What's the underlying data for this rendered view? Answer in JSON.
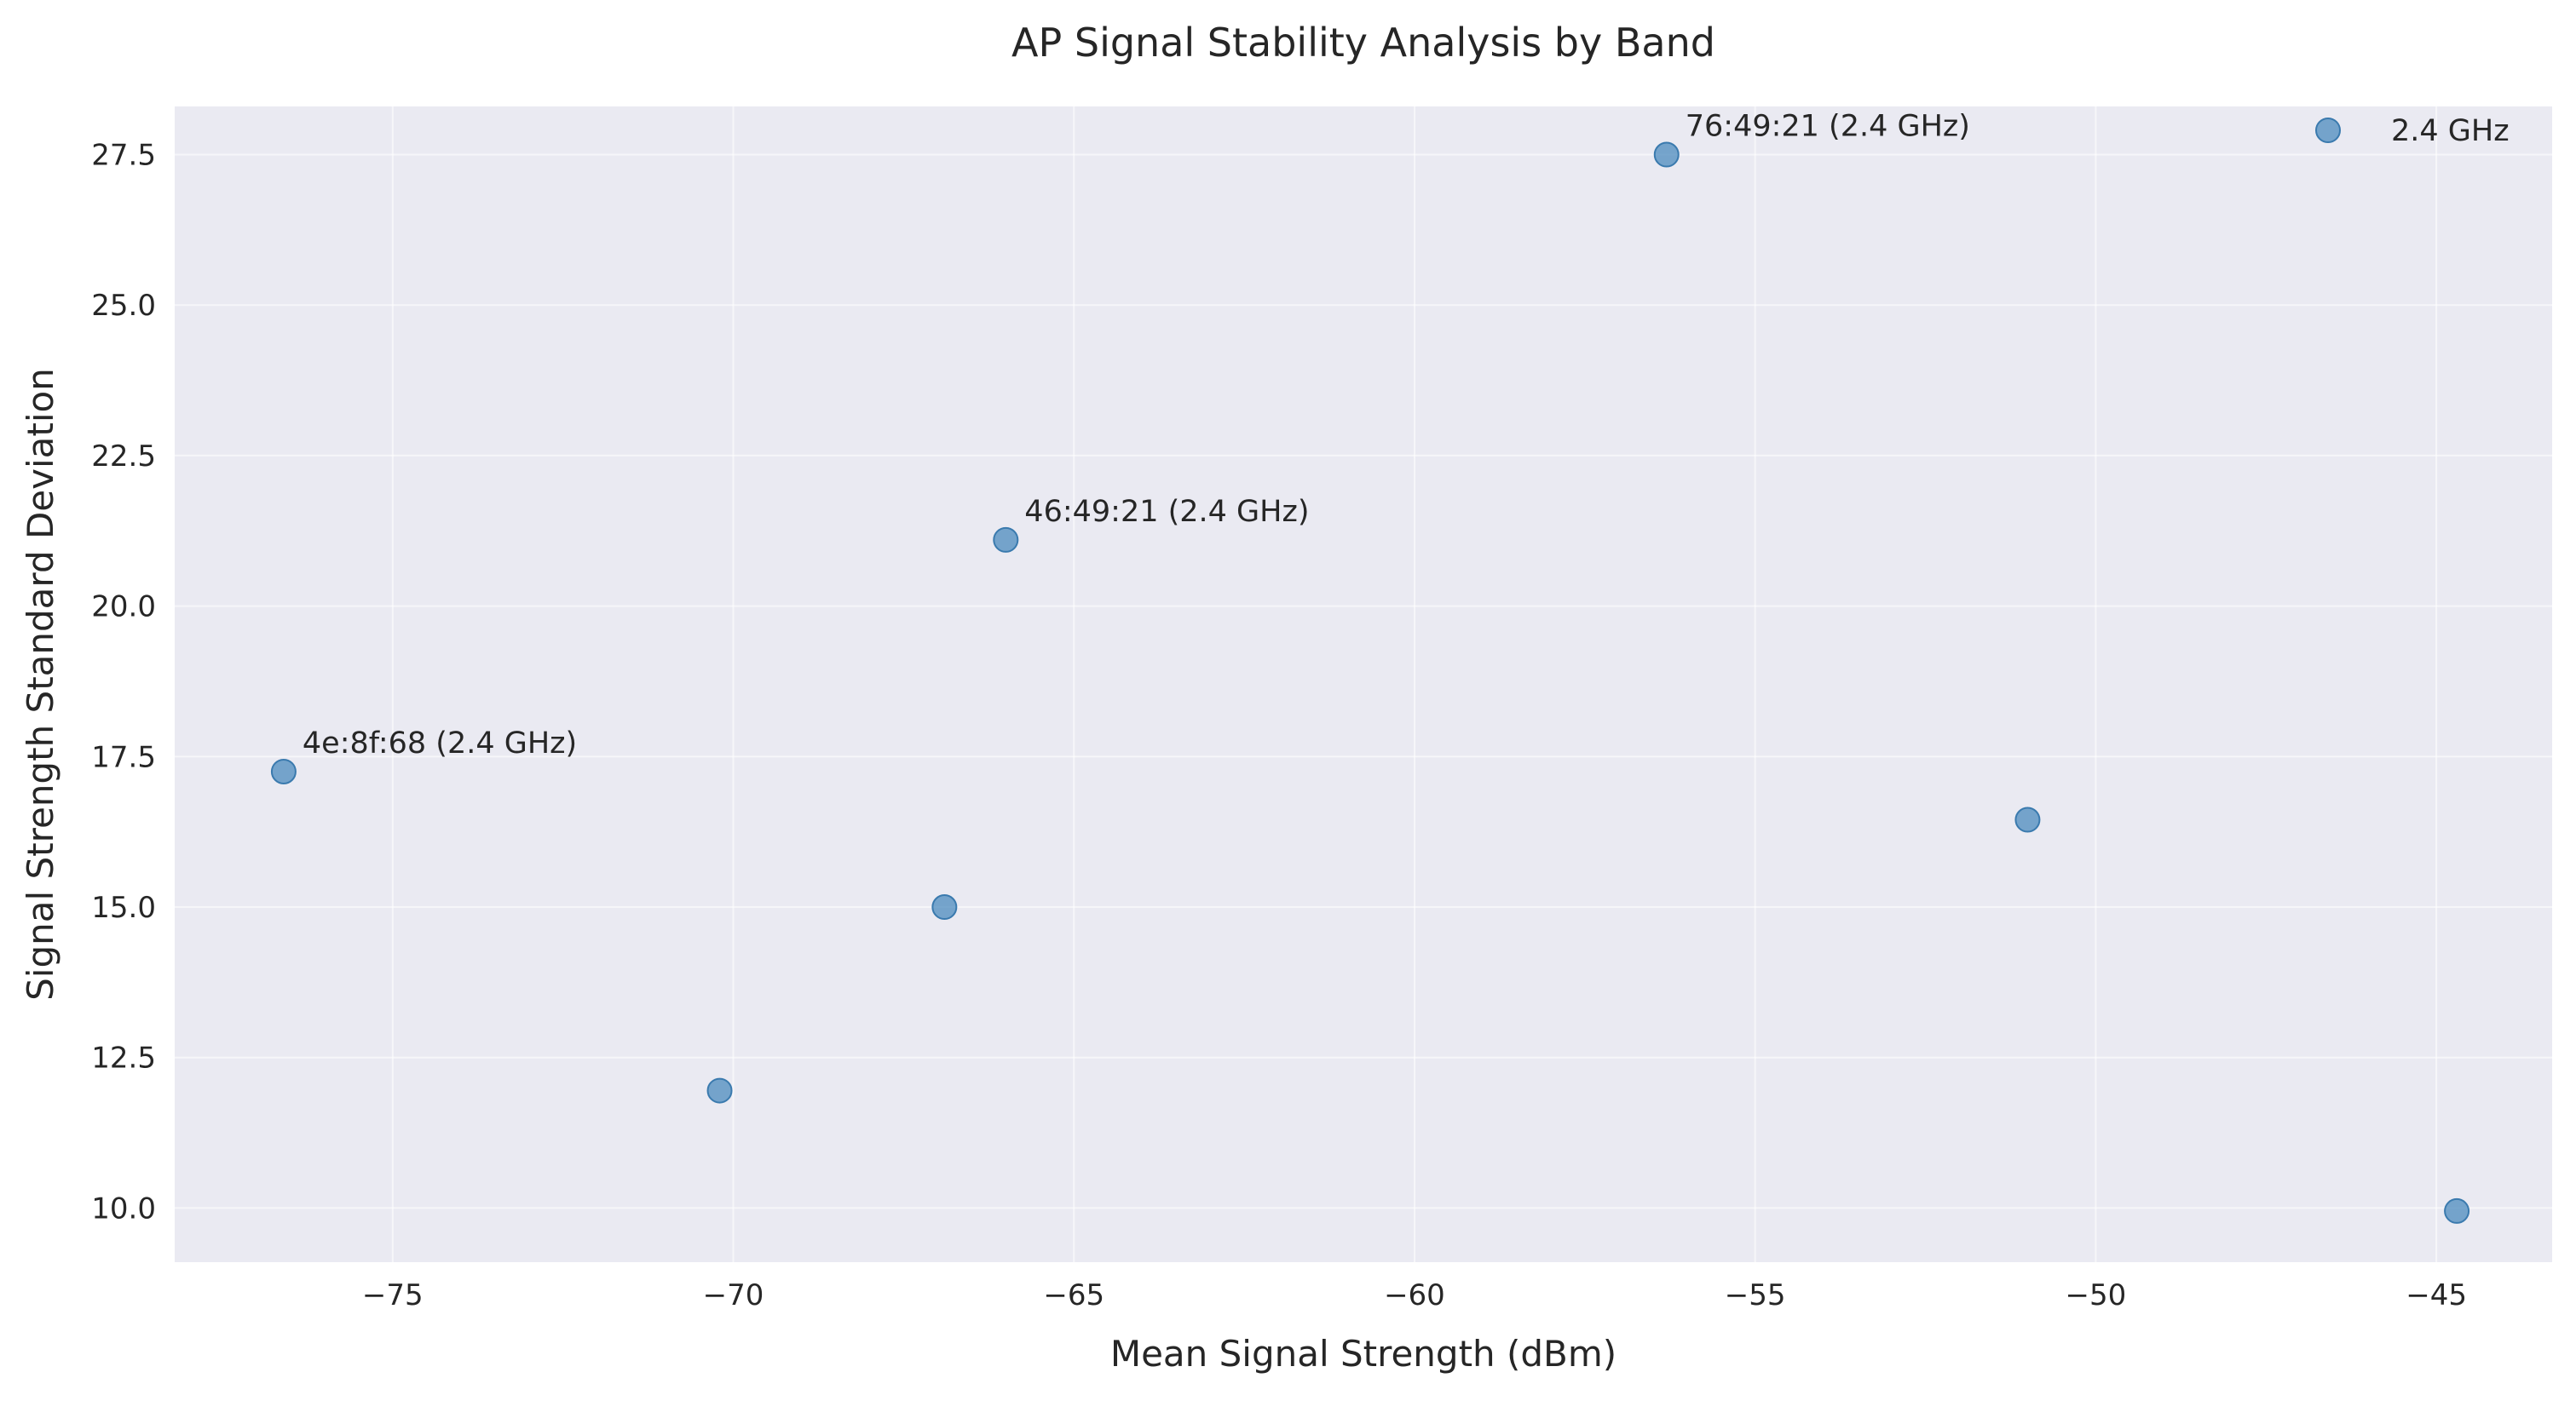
{
  "chart_data": {
    "type": "scatter",
    "title": "AP Signal Stability Analysis by Band",
    "xlabel": "Mean Signal Strength (dBm)",
    "ylabel": "Signal Strength Standard Deviation",
    "xlim": [
      -78.2,
      -43.3
    ],
    "ylim": [
      9.1,
      28.3
    ],
    "xticks": [
      -75,
      -70,
      -65,
      -60,
      -55,
      -50,
      -45
    ],
    "xtick_labels": [
      "−75",
      "−70",
      "−65",
      "−60",
      "−55",
      "−50",
      "−45"
    ],
    "yticks": [
      10.0,
      12.5,
      15.0,
      17.5,
      20.0,
      22.5,
      25.0,
      27.5
    ],
    "ytick_labels": [
      "10.0",
      "12.5",
      "15.0",
      "17.5",
      "20.0",
      "22.5",
      "25.0",
      "27.5"
    ],
    "grid": true,
    "legend_position": "top-right",
    "colors": {
      "series": "#4c8bbd",
      "background": "#eaeaf2",
      "grid": "#ffffff"
    },
    "series": [
      {
        "name": "2.4 GHz",
        "x": [
          -76.6,
          -70.2,
          -66.9,
          -66.0,
          -56.3,
          -51.0,
          -44.7
        ],
        "y": [
          17.25,
          11.95,
          15.0,
          21.1,
          27.5,
          16.45,
          9.95
        ]
      }
    ],
    "annotations": [
      {
        "text": "4e:8f:68 (2.4 GHz)",
        "x": -76.6,
        "y": 17.25
      },
      {
        "text": "46:49:21 (2.4 GHz)",
        "x": -66.0,
        "y": 21.1
      },
      {
        "text": "76:49:21 (2.4 GHz)",
        "x": -56.3,
        "y": 27.5
      }
    ]
  }
}
